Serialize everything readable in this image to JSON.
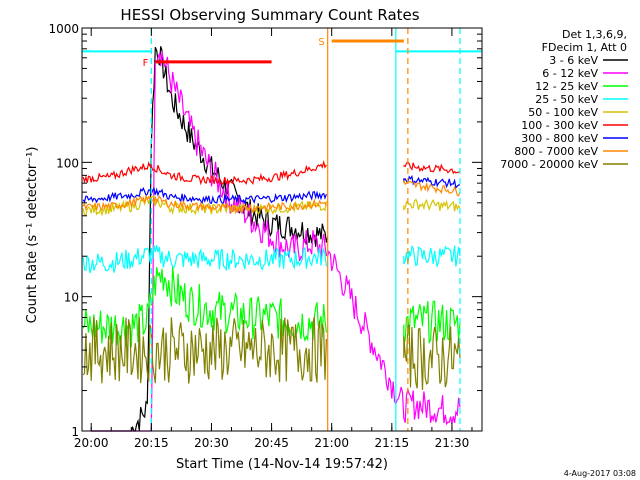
{
  "chart_data": {
    "type": "line",
    "title": "HESSI Observing Summary Count Rates",
    "xlabel": "Start Time (14-Nov-14 19:57:42)",
    "ylabel": "Count Rate (s⁻¹ detector⁻¹)",
    "yscale": "log",
    "ylim": [
      1,
      1000
    ],
    "xlim": [
      "19:57:42",
      "21:37:30"
    ],
    "x_ticks": [
      "20:00",
      "20:15",
      "20:30",
      "20:45",
      "21:00",
      "21:15",
      "21:30"
    ],
    "y_ticks": [
      "1",
      "10",
      "100",
      "1000"
    ],
    "grid": false,
    "legend_position": "top-right",
    "legend_header": [
      "Det 1,3,6,9,",
      "FDecim 1, Att 0"
    ],
    "series": [
      {
        "name": "3 - 6 keV",
        "color": "#000000",
        "x": [
          "20:00",
          "20:05",
          "20:10",
          "20:14",
          "20:15",
          "20:16",
          "20:17",
          "20:20",
          "20:25",
          "20:30",
          "20:35",
          "20:40",
          "20:45",
          "20:50",
          "20:55",
          "20:59"
        ],
        "y": [
          1,
          1,
          1,
          1.5,
          150,
          700,
          650,
          300,
          150,
          90,
          60,
          42,
          35,
          33,
          30,
          28
        ]
      },
      {
        "name": "6 - 12 keV",
        "color": "#ff00ff",
        "x": [
          "20:00",
          "20:10",
          "20:15",
          "20:16",
          "20:17",
          "20:20",
          "20:25",
          "20:30",
          "20:35",
          "20:40",
          "20:45",
          "20:50",
          "20:55",
          "20:59",
          "21:18",
          "21:20",
          "21:25",
          "21:30",
          "21:32"
        ],
        "y": [
          1,
          1,
          1,
          700,
          720,
          400,
          170,
          85,
          52,
          38,
          28,
          22,
          25,
          22,
          1.5,
          1.6,
          1.5,
          1.4,
          1.5
        ]
      },
      {
        "name": "12 - 25 keV",
        "color": "#00ff00",
        "x": [
          "19:58",
          "20:05",
          "20:10",
          "20:14",
          "20:16",
          "20:18",
          "20:21",
          "20:25",
          "20:30",
          "20:35",
          "20:40",
          "20:45",
          "20:50",
          "20:55",
          "20:59",
          "21:18",
          "21:20",
          "21:25",
          "21:30",
          "21:32"
        ],
        "y": [
          6,
          6,
          6,
          6.5,
          13,
          15,
          11,
          9,
          8,
          7.5,
          7,
          7,
          6.5,
          6.5,
          6.5,
          6.2,
          6.5,
          6.5,
          6.3,
          6.4
        ]
      },
      {
        "name": "25 - 50 keV",
        "color": "#00ffff",
        "x": [
          "19:58",
          "20:05",
          "20:10",
          "20:15",
          "20:17",
          "20:20",
          "20:30",
          "20:40",
          "20:50",
          "20:59",
          "21:18",
          "21:20",
          "21:25",
          "21:30",
          "21:32"
        ],
        "y": [
          18,
          18,
          19,
          21,
          20,
          19,
          19,
          19,
          19,
          20,
          20,
          20,
          20,
          20,
          20
        ]
      },
      {
        "name": "50 - 100 keV",
        "color": "#d4c400",
        "x": [
          "19:58",
          "20:05",
          "20:10",
          "20:15",
          "20:17",
          "20:20",
          "20:30",
          "20:40",
          "20:50",
          "20:59",
          "21:18",
          "21:20",
          "21:25",
          "21:30",
          "21:32"
        ],
        "y": [
          44,
          45,
          47,
          52,
          50,
          46,
          45,
          45,
          46,
          48,
          48,
          49,
          48,
          47,
          46
        ]
      },
      {
        "name": "100 - 300 keV",
        "color": "#ff0000",
        "x": [
          "19:58",
          "20:05",
          "20:10",
          "20:15",
          "20:17",
          "20:20",
          "20:25",
          "20:30",
          "20:35",
          "20:40",
          "20:45",
          "20:50",
          "20:55",
          "20:59",
          "21:18",
          "21:20",
          "21:25",
          "21:30",
          "21:32"
        ],
        "y": [
          75,
          78,
          88,
          95,
          88,
          80,
          75,
          74,
          73,
          74,
          77,
          82,
          90,
          98,
          95,
          93,
          90,
          88,
          85
        ]
      },
      {
        "name": "300 - 800 keV",
        "color": "#0000ff",
        "x": [
          "19:58",
          "20:05",
          "20:10",
          "20:15",
          "20:17",
          "20:20",
          "20:30",
          "20:40",
          "20:50",
          "20:59",
          "21:18",
          "21:20",
          "21:25",
          "21:30",
          "21:32"
        ],
        "y": [
          52,
          55,
          57,
          62,
          60,
          55,
          53,
          53,
          55,
          58,
          76,
          74,
          72,
          70,
          68
        ]
      },
      {
        "name": "800 - 7000 keV",
        "color": "#ff8800",
        "x": [
          "19:58",
          "20:05",
          "20:10",
          "20:15",
          "20:17",
          "20:20",
          "20:30",
          "20:40",
          "20:50",
          "20:59",
          "21:18",
          "21:20",
          "21:25",
          "21:30",
          "21:32"
        ],
        "y": [
          46,
          47,
          50,
          54,
          52,
          49,
          46,
          46,
          47,
          50,
          70,
          68,
          65,
          62,
          60
        ]
      },
      {
        "name": "7000 - 20000 keV",
        "color": "#808000",
        "x": [
          "19:58",
          "20:05",
          "20:10",
          "20:15",
          "20:20",
          "20:30",
          "20:40",
          "20:50",
          "20:59",
          "21:18",
          "21:20",
          "21:25",
          "21:30",
          "21:32"
        ],
        "y": [
          4,
          4,
          4,
          4,
          4,
          4,
          4,
          4,
          4,
          3.5,
          3.6,
          3.5,
          3.5,
          3.5
        ]
      }
    ],
    "annotations": [
      {
        "label": "F",
        "color": "#ff0000",
        "x_start": "20:16",
        "x_end": "20:45",
        "y": 560
      },
      {
        "label": "S",
        "color": "#ff8800",
        "x_start": "21:00",
        "x_end": "21:18",
        "y": 800
      }
    ],
    "vertical_lines": [
      {
        "x": "20:15",
        "color": "#00ffff",
        "style": "dashed"
      },
      {
        "x": "20:59",
        "color": "#ff8800",
        "style": "solid"
      },
      {
        "x": "21:16",
        "color": "#00ffff",
        "style": "solid"
      },
      {
        "x": "21:19",
        "color": "#ff8800",
        "style": "dashed"
      },
      {
        "x": "21:32",
        "color": "#00ffff",
        "style": "dashed"
      }
    ],
    "saa_segments": [
      {
        "x_start": "19:57:42",
        "x_end": "20:15",
        "y": 670,
        "color": "#00ffff"
      },
      {
        "x_start": "21:16",
        "x_end": "21:37:30",
        "y": 670,
        "color": "#00ffff"
      }
    ]
  },
  "footer_date": "4-Aug-2017 03:08"
}
